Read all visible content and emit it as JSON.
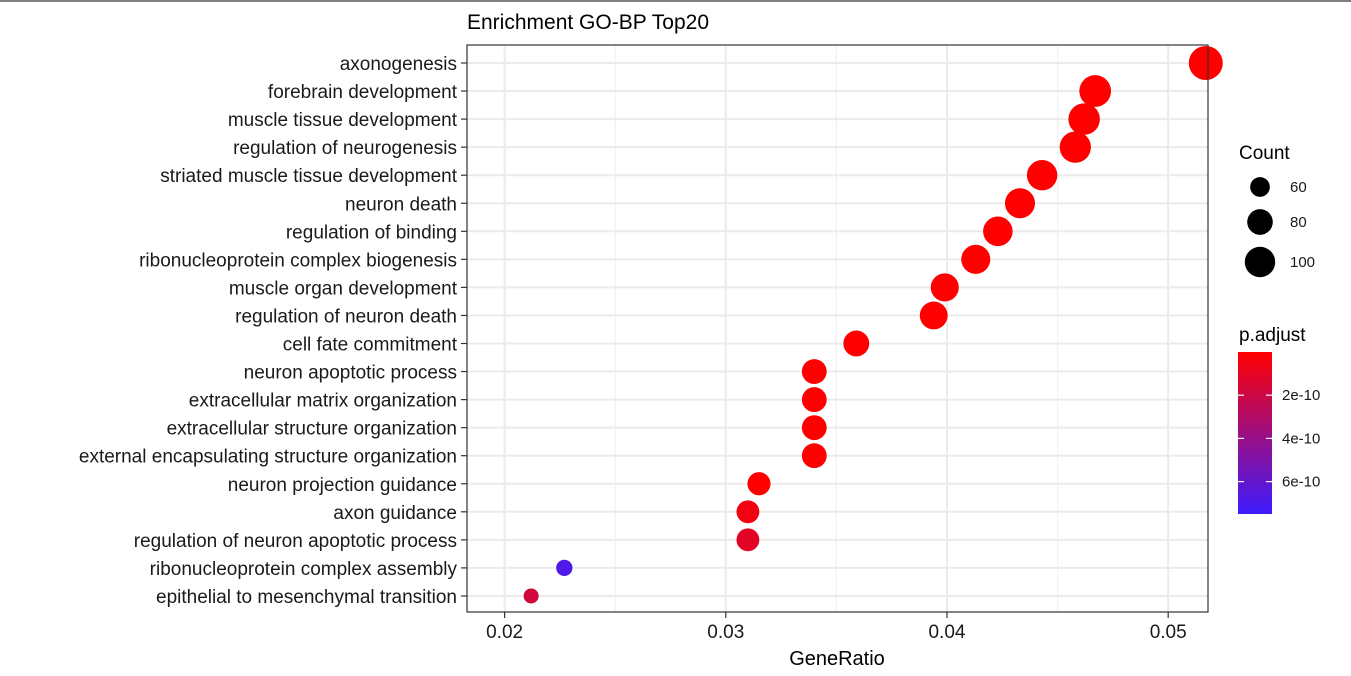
{
  "chart_data": {
    "type": "scatter",
    "title": "Enrichment GO-BP Top20",
    "xlabel": "GeneRatio",
    "ylabel": "",
    "xlim": [
      0.0183,
      0.0518
    ],
    "x_ticks": [
      {
        "value": 0.02,
        "label": "0.02"
      },
      {
        "value": 0.03,
        "label": "0.03"
      },
      {
        "value": 0.04,
        "label": "0.04"
      },
      {
        "value": 0.05,
        "label": "0.05"
      }
    ],
    "grid": true,
    "categories": [
      "axonogenesis",
      "forebrain development",
      "muscle tissue development",
      "regulation of neurogenesis",
      "striated muscle tissue development",
      "neuron death",
      "regulation of binding",
      "ribonucleoprotein complex biogenesis",
      "muscle organ development",
      "regulation of neuron death",
      "cell fate commitment",
      "neuron apoptotic process",
      "extracellular matrix organization",
      "extracellular structure organization",
      "external encapsulating structure organization",
      "neuron projection guidance",
      "axon guidance",
      "regulation of neuron apoptotic process",
      "ribonucleoprotein complex assembly",
      "epithelial to mesenchymal transition"
    ],
    "points": [
      {
        "term": "axonogenesis",
        "x": 0.0517,
        "count": 117,
        "padj": 1e-12
      },
      {
        "term": "forebrain development",
        "x": 0.0467,
        "count": 106,
        "padj": 1e-12
      },
      {
        "term": "muscle tissue development",
        "x": 0.0462,
        "count": 105,
        "padj": 1e-12
      },
      {
        "term": "regulation of neurogenesis",
        "x": 0.0458,
        "count": 104,
        "padj": 1e-12
      },
      {
        "term": "striated muscle tissue development",
        "x": 0.0443,
        "count": 100,
        "padj": 1e-12
      },
      {
        "term": "neuron death",
        "x": 0.0433,
        "count": 98,
        "padj": 1e-12
      },
      {
        "term": "regulation of binding",
        "x": 0.0423,
        "count": 96,
        "padj": 1e-12
      },
      {
        "term": "ribonucleoprotein complex biogenesis",
        "x": 0.0413,
        "count": 94,
        "padj": 1e-12
      },
      {
        "term": "muscle organ development",
        "x": 0.0399,
        "count": 90,
        "padj": 1e-12
      },
      {
        "term": "regulation of neuron death",
        "x": 0.0394,
        "count": 89,
        "padj": 1e-12
      },
      {
        "term": "cell fate commitment",
        "x": 0.0359,
        "count": 81,
        "padj": 1e-12
      },
      {
        "term": "neuron apoptotic process",
        "x": 0.034,
        "count": 77,
        "padj": 1e-12
      },
      {
        "term": "extracellular matrix organization",
        "x": 0.034,
        "count": 77,
        "padj": 1e-12
      },
      {
        "term": "extracellular structure organization",
        "x": 0.034,
        "count": 77,
        "padj": 1e-12
      },
      {
        "term": "external encapsulating structure organization",
        "x": 0.034,
        "count": 77,
        "padj": 1e-12
      },
      {
        "term": "neuron projection guidance",
        "x": 0.0315,
        "count": 71,
        "padj": 1e-12
      },
      {
        "term": "axon guidance",
        "x": 0.031,
        "count": 70,
        "padj": 5e-11
      },
      {
        "term": "regulation of neuron apoptotic process",
        "x": 0.031,
        "count": 70,
        "padj": 1.1e-10
      },
      {
        "term": "ribonucleoprotein complex assembly",
        "x": 0.0227,
        "count": 51,
        "padj": 6.8e-10
      },
      {
        "term": "epithelial to mesenchymal transition",
        "x": 0.0212,
        "count": 48,
        "padj": 1.8e-10
      }
    ],
    "size_legend": {
      "title": "Count",
      "entries": [
        {
          "value": 60,
          "label": "60"
        },
        {
          "value": 80,
          "label": "80"
        },
        {
          "value": 100,
          "label": "100"
        }
      ]
    },
    "color_legend": {
      "title": "p.adjust",
      "low_color": "#ff0000",
      "high_color": "#3d1cff",
      "range": [
        0,
        7.5e-10
      ],
      "ticks": [
        {
          "value": 2e-10,
          "label": "2e-10"
        },
        {
          "value": 4e-10,
          "label": "4e-10"
        },
        {
          "value": 6e-10,
          "label": "6e-10"
        }
      ]
    },
    "legend_position": "right"
  }
}
